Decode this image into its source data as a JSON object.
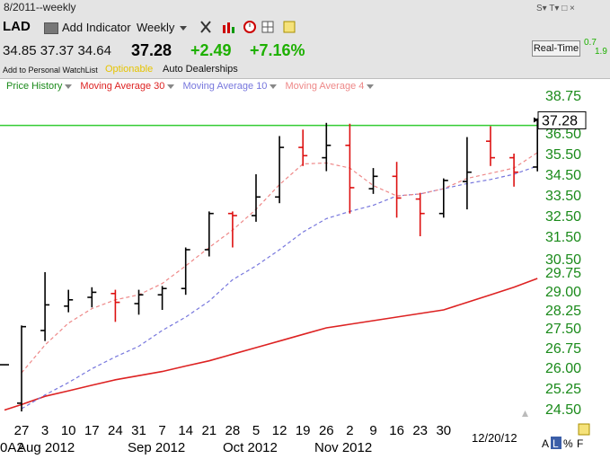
{
  "header": {
    "title_fragment": "8/2011--weekly",
    "symbol": "LAD",
    "add_indicator": "Add Indicator",
    "period": "Weekly",
    "ohlc": {
      "open": "34.85",
      "high": "37.37",
      "low": "34.64"
    },
    "last": "37.28",
    "change": "+2.49",
    "change_pct": "+7.16%",
    "watchlist": "Add to Personal WatchList",
    "optionable": "Optionable",
    "industry": "Auto Dealerships",
    "realtime_label": "Real-Time",
    "realtime_a": "0.7",
    "realtime_b": "1.9",
    "window_buttons": "S▾ T▾ □ ×",
    "colors": {
      "up": "#1db000",
      "accent_yellow": "#e6c400"
    }
  },
  "legend": [
    {
      "label": "Price History",
      "color": "#1a8a1a"
    },
    {
      "label": "Moving Average 30",
      "color": "#dd2222"
    },
    {
      "label": "Moving Average 10",
      "color": "#7777dd"
    },
    {
      "label": "Moving Average 4",
      "color": "#ee8888"
    }
  ],
  "footer": {
    "date_stamp": "12/20/12",
    "controls": [
      "A",
      "L",
      "%",
      "F"
    ]
  },
  "chart_data": {
    "type": "ohlc",
    "title": "",
    "ylim": [
      24.3,
      39.1
    ],
    "yticks": [
      "38.75",
      "37.50",
      "36.50",
      "35.50",
      "34.50",
      "33.50",
      "32.50",
      "31.50",
      "30.50",
      "29.75",
      "29.00",
      "28.25",
      "27.50",
      "26.75",
      "26.00",
      "25.25",
      "24.50"
    ],
    "x_day_labels": [
      "27",
      "3",
      "10",
      "17",
      "24",
      "31",
      "7",
      "14",
      "21",
      "28",
      "5",
      "12",
      "19",
      "26",
      "2",
      "9",
      "16",
      "23",
      "30"
    ],
    "x_month_labels": [
      "Aug 2012",
      "Sep 2012",
      "Oct 2012",
      "Nov 2012"
    ],
    "x_cut_label": "0A2",
    "last_price_label": "37.28",
    "horizontal_line": {
      "value": 36.95,
      "color": "#33cc33"
    },
    "bars": [
      {
        "o": 26.1,
        "h": 26.1,
        "l": 26.1,
        "c": 26.1,
        "color": "black"
      },
      {
        "o": 24.7,
        "h": 27.6,
        "l": 24.4,
        "c": 27.55,
        "color": "black"
      },
      {
        "o": 27.4,
        "h": 29.75,
        "l": 27.0,
        "c": 28.45,
        "color": "black"
      },
      {
        "o": 28.4,
        "h": 29.05,
        "l": 28.15,
        "c": 28.65,
        "color": "black"
      },
      {
        "o": 28.75,
        "h": 29.15,
        "l": 28.35,
        "c": 28.95,
        "color": "black"
      },
      {
        "o": 28.9,
        "h": 29.05,
        "l": 27.75,
        "c": 28.55,
        "color": "red"
      },
      {
        "o": 28.5,
        "h": 29.05,
        "l": 28.05,
        "c": 28.85,
        "color": "black"
      },
      {
        "o": 28.85,
        "h": 29.2,
        "l": 28.25,
        "c": 29.1,
        "color": "black"
      },
      {
        "o": 29.1,
        "h": 31.0,
        "l": 28.85,
        "c": 30.9,
        "color": "black"
      },
      {
        "o": 30.9,
        "h": 32.7,
        "l": 30.6,
        "c": 32.6,
        "color": "black"
      },
      {
        "o": 32.6,
        "h": 32.7,
        "l": 31.0,
        "c": 32.5,
        "color": "red"
      },
      {
        "o": 32.5,
        "h": 34.5,
        "l": 32.2,
        "c": 33.4,
        "color": "black"
      },
      {
        "o": 33.4,
        "h": 36.35,
        "l": 33.1,
        "c": 35.8,
        "color": "black"
      },
      {
        "o": 35.8,
        "h": 36.7,
        "l": 34.9,
        "c": 35.4,
        "color": "red"
      },
      {
        "o": 35.3,
        "h": 37.1,
        "l": 34.65,
        "c": 35.9,
        "color": "black"
      },
      {
        "o": 35.9,
        "h": 37.05,
        "l": 32.6,
        "c": 33.85,
        "color": "red"
      },
      {
        "o": 33.8,
        "h": 34.8,
        "l": 33.55,
        "c": 34.4,
        "color": "black"
      },
      {
        "o": 34.4,
        "h": 35.1,
        "l": 32.4,
        "c": 33.35,
        "color": "red"
      },
      {
        "o": 33.3,
        "h": 33.6,
        "l": 31.5,
        "c": 32.6,
        "color": "red"
      },
      {
        "o": 32.6,
        "h": 34.3,
        "l": 32.4,
        "c": 34.2,
        "color": "black"
      },
      {
        "o": 34.15,
        "h": 36.3,
        "l": 32.8,
        "c": 34.6,
        "color": "black"
      },
      {
        "o": 36.1,
        "h": 36.9,
        "l": 34.9,
        "c": 35.3,
        "color": "red"
      },
      {
        "o": 35.3,
        "h": 35.5,
        "l": 33.9,
        "c": 34.6,
        "color": "red"
      },
      {
        "o": 34.85,
        "h": 37.37,
        "l": 34.64,
        "c": 37.28,
        "color": "black"
      }
    ],
    "series": [
      {
        "name": "Moving Average 30",
        "color": "#dd2222",
        "dash": false,
        "x": [
          0,
          1,
          2,
          3,
          4,
          5,
          6,
          7,
          8,
          9,
          10,
          11,
          12,
          13,
          14,
          15,
          16,
          17,
          18,
          19,
          20,
          21,
          22,
          23
        ],
        "y": [
          24.45,
          24.65,
          24.95,
          25.15,
          25.35,
          25.55,
          25.7,
          25.85,
          26.05,
          26.25,
          26.5,
          26.75,
          27.0,
          27.25,
          27.5,
          27.65,
          27.8,
          27.95,
          28.1,
          28.25,
          28.55,
          28.85,
          29.15,
          29.5
        ]
      },
      {
        "name": "Moving Average 10",
        "color": "#7777dd",
        "dash": true,
        "x": [
          1,
          2,
          3,
          4,
          5,
          6,
          7,
          8,
          9,
          10,
          11,
          12,
          13,
          14,
          15,
          16,
          17,
          18,
          19,
          20,
          21,
          22,
          23
        ],
        "y": [
          24.5,
          25.0,
          25.45,
          25.95,
          26.4,
          26.8,
          27.4,
          27.95,
          28.6,
          29.45,
          30.1,
          30.9,
          31.7,
          32.35,
          32.7,
          33.0,
          33.45,
          33.55,
          33.8,
          34.05,
          34.25,
          34.5,
          34.9
        ]
      },
      {
        "name": "Moving Average 4",
        "color": "#ee8888",
        "dash": true,
        "x": [
          1,
          2,
          3,
          4,
          5,
          6,
          7,
          8,
          9,
          10,
          11,
          12,
          13,
          14,
          15,
          16,
          17,
          18,
          19,
          20,
          21,
          22,
          23
        ],
        "y": [
          25.8,
          26.85,
          27.7,
          28.3,
          28.65,
          28.85,
          29.3,
          30.1,
          31.0,
          31.8,
          32.8,
          34.0,
          35.0,
          35.05,
          34.8,
          33.95,
          33.45,
          33.55,
          33.8,
          34.3,
          34.55,
          34.8,
          35.55
        ]
      }
    ]
  }
}
